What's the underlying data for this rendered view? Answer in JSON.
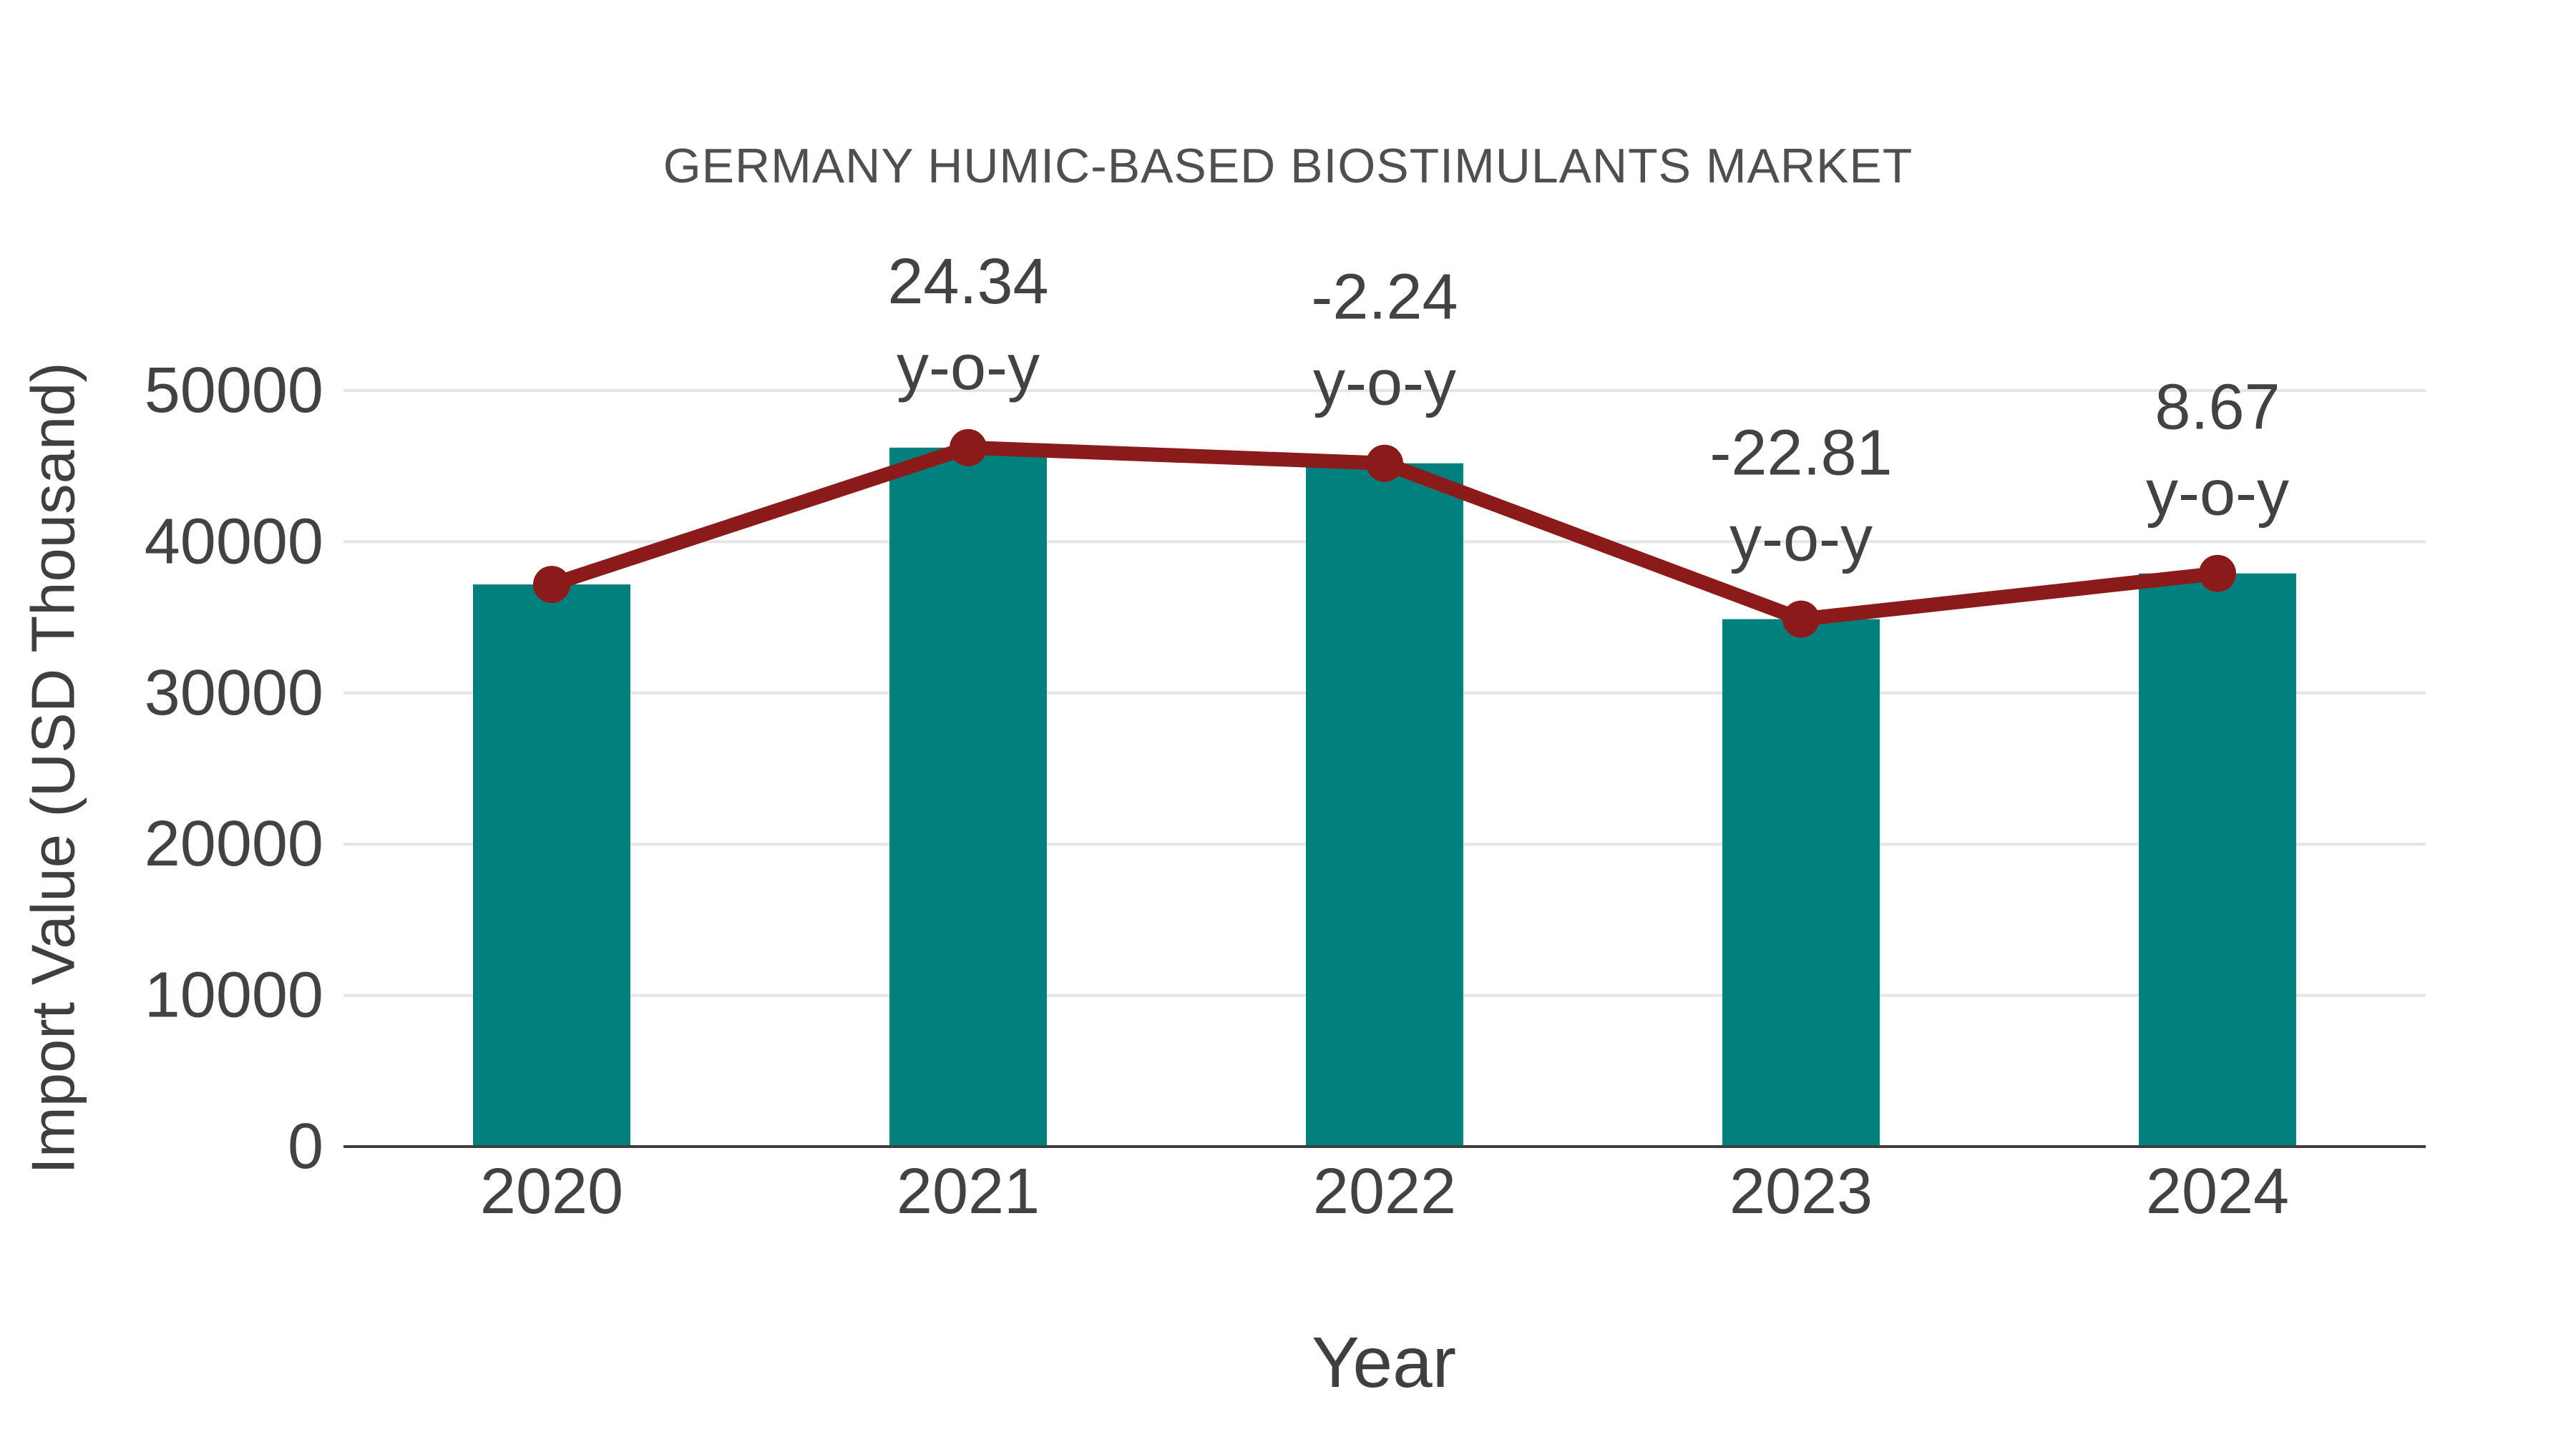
{
  "chart_data": {
    "type": "bar",
    "title": "GERMANY HUMIC-BASED BIOSTIMULANTS MARKET",
    "xlabel": "Year",
    "ylabel": "Import Value (USD Thousand)",
    "categories": [
      "2020",
      "2021",
      "2022",
      "2023",
      "2024"
    ],
    "values": [
      37177,
      46224,
      45189,
      34881,
      37905
    ],
    "line_overlay": {
      "name": "y-o-y change",
      "values": [
        37177,
        46224,
        45189,
        34881,
        37905
      ],
      "yoy_percent": [
        null,
        24.34,
        -2.24,
        -22.81,
        8.67
      ],
      "point_labels": [
        null,
        {
          "value": "24.34",
          "suffix": "y-o-y"
        },
        {
          "value": "-2.24",
          "suffix": "y-o-y"
        },
        {
          "value": "-22.81",
          "suffix": "y-o-y"
        },
        {
          "value": "8.67",
          "suffix": "y-o-y"
        }
      ]
    },
    "yticks": [
      0,
      10000,
      20000,
      30000,
      40000,
      50000
    ],
    "ylim": [
      0,
      52200
    ],
    "grid": "horizontal",
    "legend": "none",
    "colors": {
      "bar": "#02807E",
      "line": "#8B1A1A",
      "marker": "#8B1A1A",
      "title_text": "#4F4F4F",
      "tick_text": "#424242",
      "axis_label_text": "#3F3F3F",
      "gridline": "#E5E5E5",
      "axis_line": "#3F3F3F",
      "background": "#FFFFFF"
    }
  }
}
